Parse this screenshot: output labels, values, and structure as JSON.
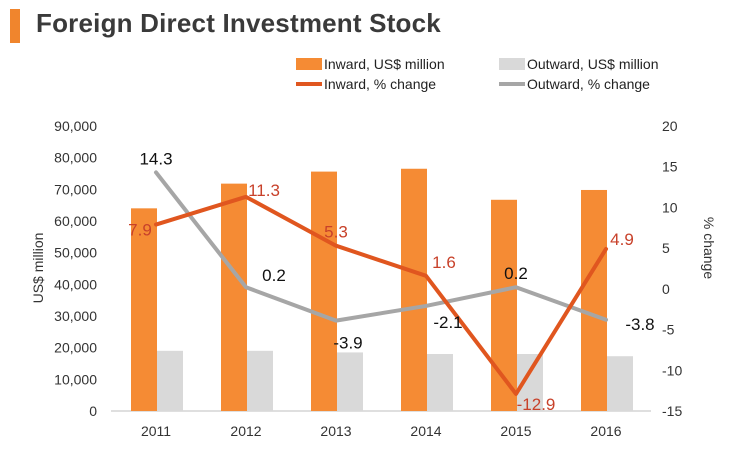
{
  "header": {
    "title": "Foreign Direct Investment Stock"
  },
  "colors": {
    "accent": "#f0852d",
    "inward_bar": "#f58b34",
    "outward_bar": "#d9d9d9",
    "inward_line": "#e0561f",
    "outward_line": "#a6a6a6",
    "inward_label": "#c8412a",
    "outward_label": "#111111"
  },
  "chart_data": {
    "type": "bar",
    "title": "Foreign Direct Investment Stock",
    "categories": [
      "2011",
      "2012",
      "2013",
      "2014",
      "2015",
      "2016"
    ],
    "ylabel": "US$ million",
    "y2label": "% change",
    "ylim": [
      0,
      90000
    ],
    "y2lim": [
      -15,
      20
    ],
    "yticks": [
      "0",
      "10,000",
      "20,000",
      "30,000",
      "40,000",
      "50,000",
      "60,000",
      "70,000",
      "80,000",
      "90,000"
    ],
    "y2ticks": [
      "-15",
      "-10",
      "-5",
      "0",
      "5",
      "10",
      "15",
      "20"
    ],
    "legend": [
      "Inward, US$ million",
      "Outward, US$ million",
      "Inward, % change",
      "Outward, % change"
    ],
    "series": [
      {
        "name": "Inward, US$ million",
        "kind": "bar",
        "axis": "left",
        "values": [
          64000,
          71800,
          75600,
          76500,
          66700,
          69800
        ]
      },
      {
        "name": "Outward, US$ million",
        "kind": "bar",
        "axis": "left",
        "values": [
          19000,
          19000,
          18500,
          18000,
          18000,
          17300
        ]
      },
      {
        "name": "Inward, % change",
        "kind": "line",
        "axis": "right",
        "values": [
          7.9,
          11.3,
          5.3,
          1.6,
          -12.9,
          4.9
        ],
        "labels": [
          "7.9",
          "11.3",
          "5.3",
          "1.6",
          "-12.9",
          "4.9"
        ]
      },
      {
        "name": "Outward, % change",
        "kind": "line",
        "axis": "right",
        "values": [
          14.3,
          0.2,
          -3.9,
          -2.1,
          0.2,
          -3.8
        ],
        "labels": [
          "14.3",
          "0.2",
          "-3.9",
          "-2.1",
          "0.2",
          "-3.8"
        ]
      }
    ]
  }
}
